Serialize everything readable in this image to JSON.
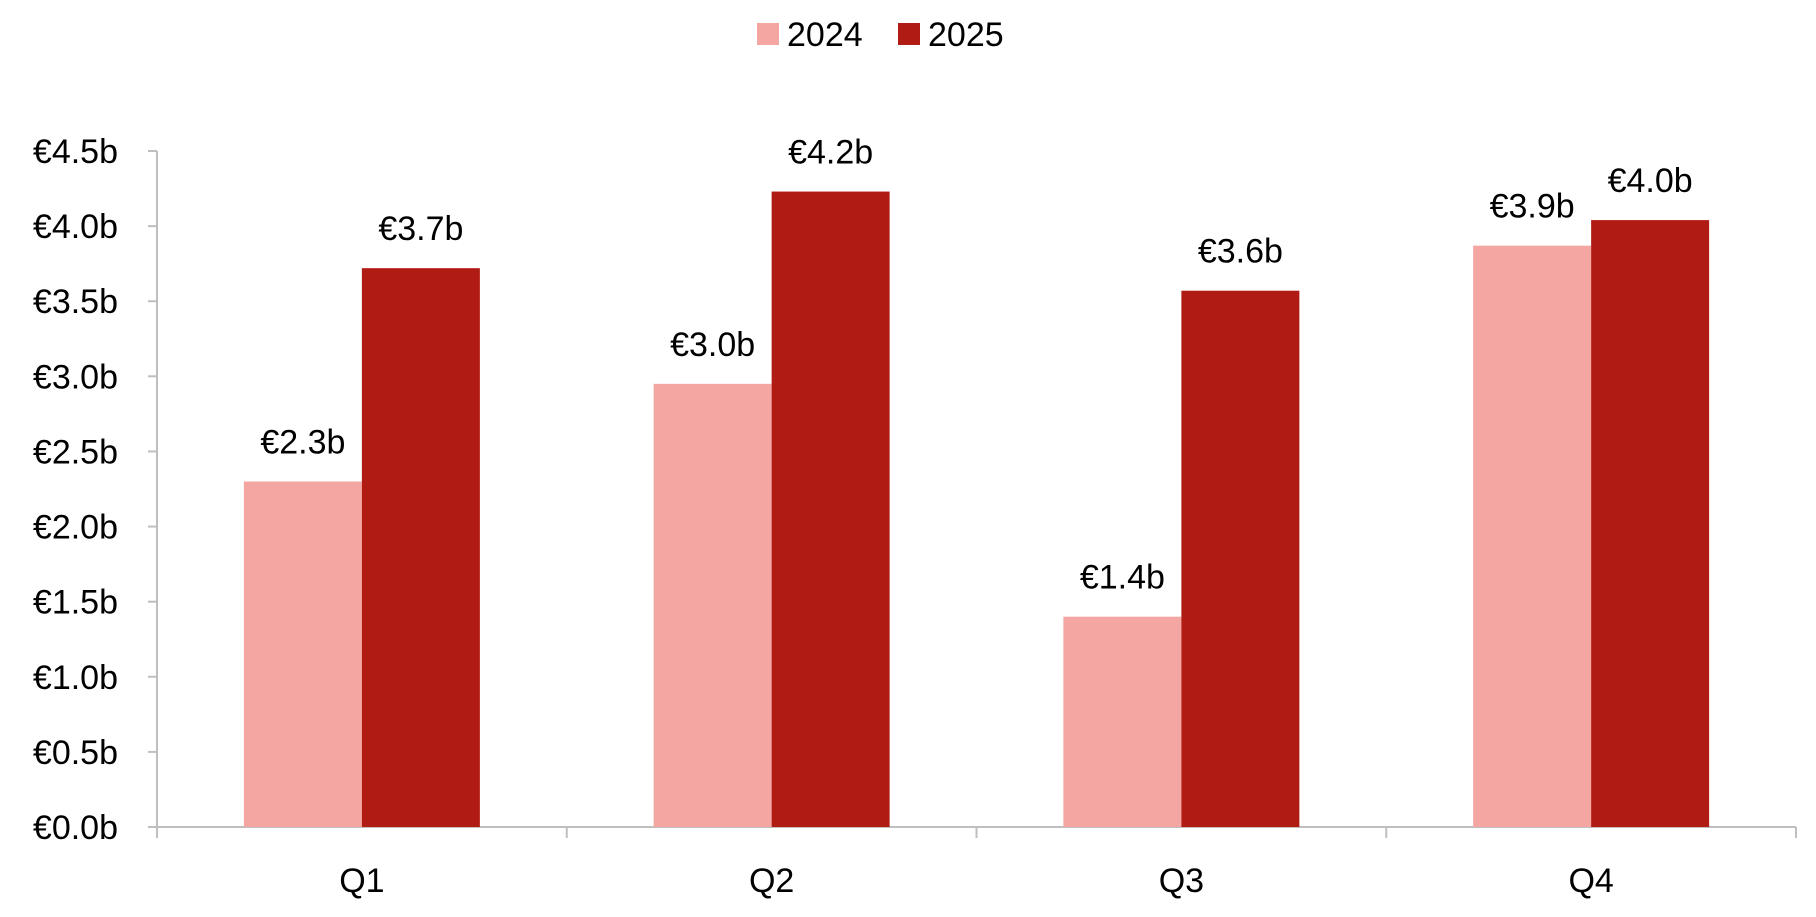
{
  "chart_data": {
    "type": "bar",
    "categories": [
      "Q1",
      "Q2",
      "Q3",
      "Q4"
    ],
    "series": [
      {
        "name": "2024",
        "color": "#f4a6a2",
        "values": [
          2.3,
          2.95,
          1.4,
          3.87
        ],
        "labels": [
          "€2.3b",
          "€3.0b",
          "€1.4b",
          "€3.9b"
        ]
      },
      {
        "name": "2025",
        "color": "#b01c13",
        "values": [
          3.72,
          4.23,
          3.57,
          4.04
        ],
        "labels": [
          "€3.7b",
          "€4.2b",
          "€3.6b",
          "€4.0b"
        ]
      }
    ],
    "ylim": [
      0,
      4.5
    ],
    "yticks": [
      0,
      0.5,
      1.0,
      1.5,
      2.0,
      2.5,
      3.0,
      3.5,
      4.0,
      4.5
    ],
    "ytick_labels": [
      "€0.0b",
      "€0.5b",
      "€1.0b",
      "€1.5b",
      "€2.0b",
      "€2.5b",
      "€3.0b",
      "€3.5b",
      "€4.0b",
      "€4.5b"
    ],
    "legend_position": "top-center",
    "grid": false
  }
}
